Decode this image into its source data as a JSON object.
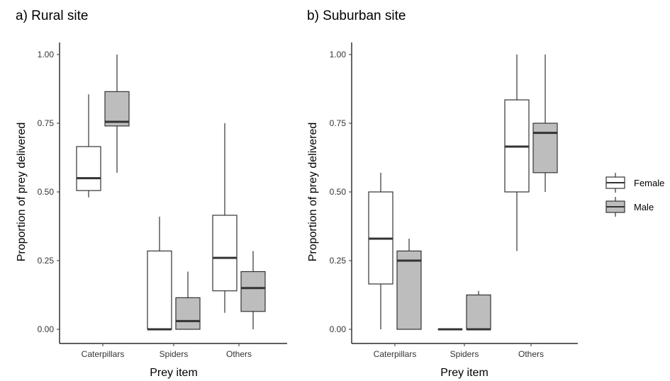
{
  "chart_data": [
    {
      "type": "boxplot",
      "title": "a) Rural site",
      "xlabel": "Prey item",
      "ylabel": "Proportion of prey delivered",
      "ylim": [
        0,
        1
      ],
      "yticks": [
        "0.00",
        "0.25",
        "0.50",
        "0.75",
        "1.00"
      ],
      "categories": [
        "Caterpillars",
        "Spiders",
        "Others"
      ],
      "series": [
        {
          "name": "Female",
          "boxes": [
            {
              "min": 0.48,
              "q1": 0.505,
              "median": 0.55,
              "q3": 0.665,
              "max": 0.855
            },
            {
              "min": 0.0,
              "q1": 0.0,
              "median": 0.0,
              "q3": 0.285,
              "max": 0.41
            },
            {
              "min": 0.06,
              "q1": 0.14,
              "median": 0.26,
              "q3": 0.415,
              "max": 0.75
            }
          ]
        },
        {
          "name": "Male",
          "boxes": [
            {
              "min": 0.57,
              "q1": 0.74,
              "median": 0.755,
              "q3": 0.865,
              "max": 1.0
            },
            {
              "min": 0.0,
              "q1": 0.0,
              "median": 0.03,
              "q3": 0.115,
              "max": 0.21
            },
            {
              "min": 0.0,
              "q1": 0.065,
              "median": 0.15,
              "q3": 0.21,
              "max": 0.285
            }
          ]
        }
      ]
    },
    {
      "type": "boxplot",
      "title": "b) Suburban site",
      "xlabel": "Prey item",
      "ylabel": "Proportion of prey delivered",
      "ylim": [
        0,
        1
      ],
      "yticks": [
        "0.00",
        "0.25",
        "0.50",
        "0.75",
        "1.00"
      ],
      "categories": [
        "Caterpillars",
        "Spiders",
        "Others"
      ],
      "series": [
        {
          "name": "Female",
          "boxes": [
            {
              "min": 0.0,
              "q1": 0.165,
              "median": 0.33,
              "q3": 0.5,
              "max": 0.57
            },
            {
              "min": 0.0,
              "q1": 0.0,
              "median": 0.0,
              "q3": 0.0,
              "max": 0.0
            },
            {
              "min": 0.285,
              "q1": 0.5,
              "median": 0.665,
              "q3": 0.835,
              "max": 1.0
            }
          ]
        },
        {
          "name": "Male",
          "boxes": [
            {
              "min": 0.0,
              "q1": 0.0,
              "median": 0.25,
              "q3": 0.285,
              "max": 0.33
            },
            {
              "min": 0.0,
              "q1": 0.0,
              "median": 0.0,
              "q3": 0.125,
              "max": 0.14
            },
            {
              "min": 0.5,
              "q1": 0.57,
              "median": 0.715,
              "q3": 0.75,
              "max": 1.0
            }
          ]
        }
      ]
    }
  ],
  "legend": {
    "placement": "right",
    "items": [
      {
        "name": "Female",
        "fill": "#ffffff"
      },
      {
        "name": "Male",
        "fill": "#bdbdbd"
      }
    ]
  },
  "colors": {
    "female_fill": "#ffffff",
    "male_fill": "#bdbdbd",
    "stroke": "#333333"
  }
}
